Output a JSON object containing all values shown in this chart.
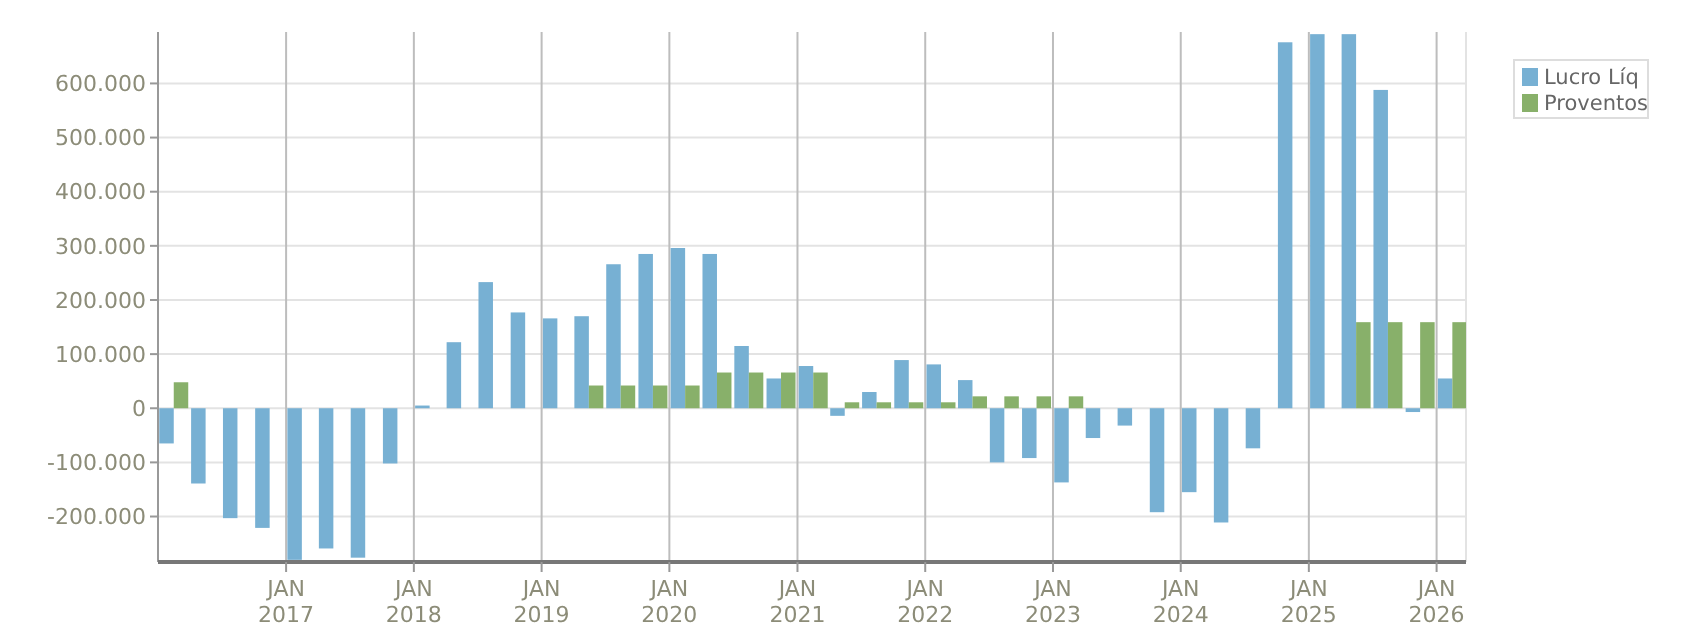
{
  "chart_data": {
    "type": "bar",
    "x": [
      "2016-02-15",
      "2016-05-16",
      "2016-08-15",
      "2016-11-15",
      "2017-02-15",
      "2017-05-16",
      "2017-08-15",
      "2017-11-15",
      "2018-02-15",
      "2018-05-16",
      "2018-08-15",
      "2018-11-15",
      "2019-02-15",
      "2019-05-16",
      "2019-08-15",
      "2019-11-15",
      "2020-02-15",
      "2020-05-16",
      "2020-08-15",
      "2020-11-15",
      "2021-02-15",
      "2021-05-16",
      "2021-08-15",
      "2021-11-15",
      "2022-02-15",
      "2022-05-16",
      "2022-08-15",
      "2022-11-15",
      "2023-02-15",
      "2023-05-16",
      "2023-08-15",
      "2023-11-15",
      "2024-02-15",
      "2024-05-16",
      "2024-08-15",
      "2024-11-15",
      "2025-02-15",
      "2025-05-16",
      "2025-08-15",
      "2025-11-15",
      "2026-02-15"
    ],
    "series": [
      {
        "name": "Lucro Líq",
        "color": "#77b0d3",
        "values": [
          -65000,
          -139000,
          -203000,
          -221000,
          -280000,
          -259000,
          -276000,
          -102000,
          5000,
          122000,
          233000,
          177000,
          166000,
          170000,
          266000,
          285000,
          296000,
          285000,
          115000,
          55000,
          78000,
          -14000,
          30000,
          89000,
          81000,
          52000,
          -100000,
          -92000,
          -137000,
          -55000,
          -32000,
          -192000,
          -155000,
          -211000,
          -74000,
          676000,
          691000,
          691000,
          588000,
          -7000,
          55000
        ]
      },
      {
        "name": "Proventos",
        "color": "#88b06a",
        "values": [
          48000,
          0,
          0,
          0,
          0,
          0,
          0,
          0,
          0,
          0,
          0,
          0,
          0,
          42000,
          42000,
          42000,
          42000,
          66000,
          66000,
          66000,
          66000,
          11000,
          11000,
          11000,
          11000,
          22000,
          22000,
          22000,
          22000,
          0,
          0,
          0,
          0,
          0,
          0,
          0,
          0,
          159000,
          159000,
          159000,
          159000
        ]
      }
    ],
    "xlim": [
      "2016-01",
      "2026-03-26"
    ],
    "xticks": [
      {
        "value": "2017-01",
        "label": "JAN 2017"
      },
      {
        "value": "2018-01",
        "label": "JAN 2018"
      },
      {
        "value": "2019-01",
        "label": "JAN 2019"
      },
      {
        "value": "2020-01",
        "label": "JAN 2020"
      },
      {
        "value": "2021-01",
        "label": "JAN 2021"
      },
      {
        "value": "2022-01",
        "label": "JAN 2022"
      },
      {
        "value": "2023-01",
        "label": "JAN 2023"
      },
      {
        "value": "2024-01",
        "label": "JAN 2024"
      },
      {
        "value": "2025-01",
        "label": "JAN 2025"
      },
      {
        "value": "2026-01",
        "label": "JAN 2026"
      }
    ],
    "ylim": [
      -284000,
      695000
    ],
    "yticks": [
      {
        "value": -200000,
        "label": "-200.000"
      },
      {
        "value": -100000,
        "label": "-100.000"
      },
      0,
      {
        "value": 100000,
        "label": "100.000"
      },
      {
        "value": 200000,
        "label": "200.000"
      },
      {
        "value": 300000,
        "label": "300.000"
      },
      {
        "value": 400000,
        "label": "400.000"
      },
      {
        "value": 500000,
        "label": "500.000"
      },
      {
        "value": 600000,
        "label": "600.000"
      }
    ],
    "grid": true,
    "legend": "top right"
  }
}
